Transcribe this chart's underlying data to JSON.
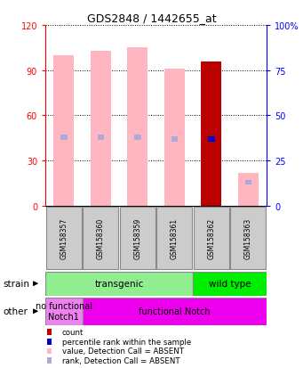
{
  "title": "GDS2848 / 1442655_at",
  "samples": [
    "GSM158357",
    "GSM158360",
    "GSM158359",
    "GSM158361",
    "GSM158362",
    "GSM158363"
  ],
  "value_bars": [
    100,
    103,
    105,
    91,
    96,
    22
  ],
  "value_absent": [
    true,
    true,
    true,
    true,
    false,
    true
  ],
  "rank_bars": [
    38,
    38,
    38,
    37,
    37,
    13
  ],
  "rank_absent": [
    true,
    true,
    true,
    true,
    false,
    true
  ],
  "left_ylim": [
    0,
    120
  ],
  "right_ylim": [
    0,
    100
  ],
  "left_yticks": [
    0,
    30,
    60,
    90,
    120
  ],
  "right_yticks": [
    0,
    25,
    50,
    75,
    100
  ],
  "right_yticklabels": [
    "0",
    "25",
    "50",
    "75",
    "100%"
  ],
  "strain_groups": [
    {
      "label": "transgenic",
      "start": 0,
      "end": 4,
      "color": "#90EE90"
    },
    {
      "label": "wild type",
      "start": 4,
      "end": 6,
      "color": "#00EE00"
    }
  ],
  "other_groups": [
    {
      "label": "no functional\nNotch1",
      "start": 0,
      "end": 1,
      "color": "#EE82EE"
    },
    {
      "label": "functional Notch",
      "start": 1,
      "end": 6,
      "color": "#EE00EE"
    }
  ],
  "bar_color_value_absent": "#FFB6C1",
  "bar_color_value_present": "#BB0000",
  "bar_color_rank_absent": "#AAAADD",
  "bar_color_rank_present": "#0000CC",
  "legend_items": [
    {
      "color": "#BB0000",
      "label": "count"
    },
    {
      "color": "#0000CC",
      "label": "percentile rank within the sample"
    },
    {
      "color": "#FFB6C1",
      "label": "value, Detection Call = ABSENT"
    },
    {
      "color": "#AAAADD",
      "label": "rank, Detection Call = ABSENT"
    }
  ]
}
